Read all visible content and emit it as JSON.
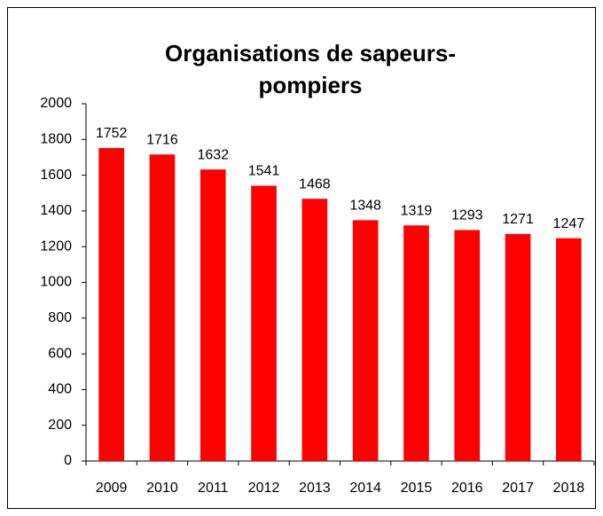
{
  "chart_data": {
    "type": "bar",
    "title": [
      "Organisations de sapeurs-",
      "pompiers"
    ],
    "categories": [
      "2009",
      "2010",
      "2011",
      "2012",
      "2013",
      "2014",
      "2015",
      "2016",
      "2017",
      "2018"
    ],
    "values": [
      1752,
      1716,
      1632,
      1541,
      1468,
      1348,
      1319,
      1293,
      1271,
      1247
    ],
    "color": "#ff0000",
    "ylim": [
      0,
      2000
    ],
    "yticks": [
      0,
      200,
      400,
      600,
      800,
      1000,
      1200,
      1400,
      1600,
      1800,
      2000
    ],
    "grid": false
  }
}
